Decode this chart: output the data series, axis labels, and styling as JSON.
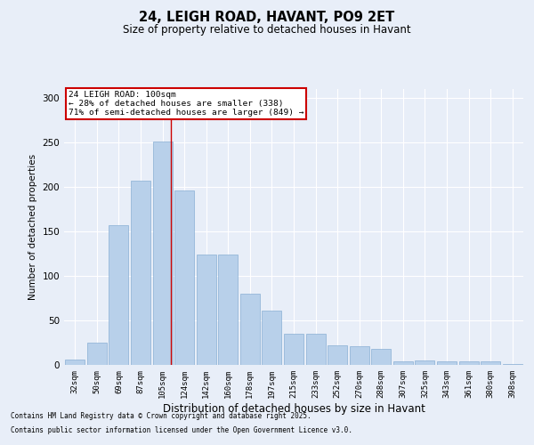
{
  "title1": "24, LEIGH ROAD, HAVANT, PO9 2ET",
  "title2": "Size of property relative to detached houses in Havant",
  "xlabel": "Distribution of detached houses by size in Havant",
  "ylabel": "Number of detached properties",
  "categories": [
    "32sqm",
    "50sqm",
    "69sqm",
    "87sqm",
    "105sqm",
    "124sqm",
    "142sqm",
    "160sqm",
    "178sqm",
    "197sqm",
    "215sqm",
    "233sqm",
    "252sqm",
    "270sqm",
    "288sqm",
    "307sqm",
    "325sqm",
    "343sqm",
    "361sqm",
    "380sqm",
    "398sqm"
  ],
  "values": [
    6,
    25,
    157,
    207,
    251,
    196,
    124,
    124,
    80,
    61,
    35,
    35,
    22,
    21,
    18,
    4,
    5,
    4,
    4,
    4,
    1
  ],
  "bar_color": "#b8d0ea",
  "bar_edgecolor": "#8ab0d4",
  "background_color": "#e8eef8",
  "grid_color": "#ffffff",
  "property_line_index": 4,
  "annotation_line1": "24 LEIGH ROAD: 100sqm",
  "annotation_line2": "← 28% of detached houses are smaller (338)",
  "annotation_line3": "71% of semi-detached houses are larger (849) →",
  "annotation_box_color": "#ffffff",
  "annotation_box_edge": "#cc0000",
  "vline_color": "#cc0000",
  "footnote1": "Contains HM Land Registry data © Crown copyright and database right 2025.",
  "footnote2": "Contains public sector information licensed under the Open Government Licence v3.0.",
  "ylim": [
    0,
    310
  ],
  "yticks": [
    0,
    50,
    100,
    150,
    200,
    250,
    300
  ]
}
